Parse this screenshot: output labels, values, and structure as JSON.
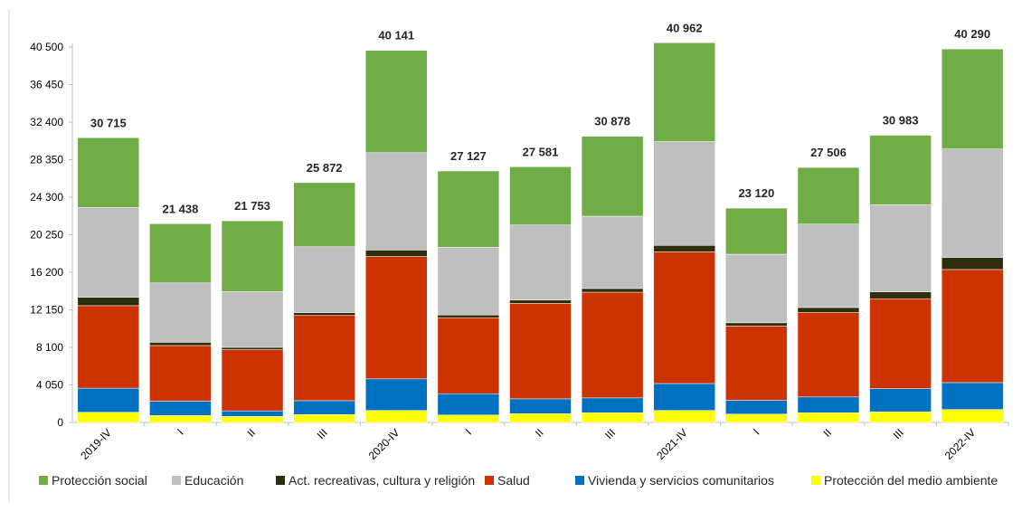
{
  "chart_data": {
    "type": "bar",
    "stacked": true,
    "categories": [
      "2019-IV",
      "I",
      "II",
      "III",
      "2020-IV",
      "I",
      "II",
      "III",
      "2021-IV",
      "I",
      "II",
      "III",
      "2022-IV"
    ],
    "totals": [
      "30 715",
      "21 438",
      "21 753",
      "25 872",
      "40 141",
      "27 127",
      "27 581",
      "30 878",
      "40 962",
      "23 120",
      "27 506",
      "30 983",
      "40 290"
    ],
    "y_ticks": [
      "0",
      "4 050",
      "8 100",
      "12 150",
      "16 200",
      "20 250",
      "24 300",
      "28 350",
      "32 400",
      "36 450",
      "40 500"
    ],
    "ylim": [
      0,
      40500
    ],
    "grid": false,
    "legend_position": "bottom",
    "series": [
      {
        "name": "Protección del medio ambiente",
        "color": "#ffff00",
        "values": [
          1100,
          750,
          650,
          850,
          1300,
          800,
          950,
          1050,
          1300,
          900,
          1050,
          1150,
          1400
        ]
      },
      {
        "name": "Vivienda y servicios comunitarios",
        "color": "#0070c0",
        "values": [
          2600,
          1550,
          600,
          1500,
          3400,
          2300,
          1600,
          1600,
          2900,
          1500,
          1700,
          2500,
          2900
        ]
      },
      {
        "name": "Salud",
        "color": "#cc3300",
        "values": [
          8900,
          6000,
          6600,
          9200,
          13200,
          8200,
          10300,
          11400,
          14200,
          8000,
          9100,
          9700,
          12200
        ]
      },
      {
        "name": "Act. recreativas, cultura y religión",
        "color": "#2e2d0c",
        "values": [
          900,
          350,
          250,
          300,
          700,
          300,
          350,
          400,
          700,
          350,
          550,
          750,
          1300
        ]
      },
      {
        "name": "Educación",
        "color": "#bfbfbf",
        "values": [
          9700,
          6400,
          6000,
          7100,
          10500,
          7300,
          8100,
          7800,
          11200,
          7400,
          9000,
          9400,
          11700
        ]
      },
      {
        "name": "Protección social",
        "color": "#70ad47",
        "values": [
          7515,
          6388,
          7653,
          6922,
          11041,
          8227,
          6281,
          8628,
          10662,
          4970,
          6106,
          7483,
          10790
        ]
      }
    ]
  }
}
